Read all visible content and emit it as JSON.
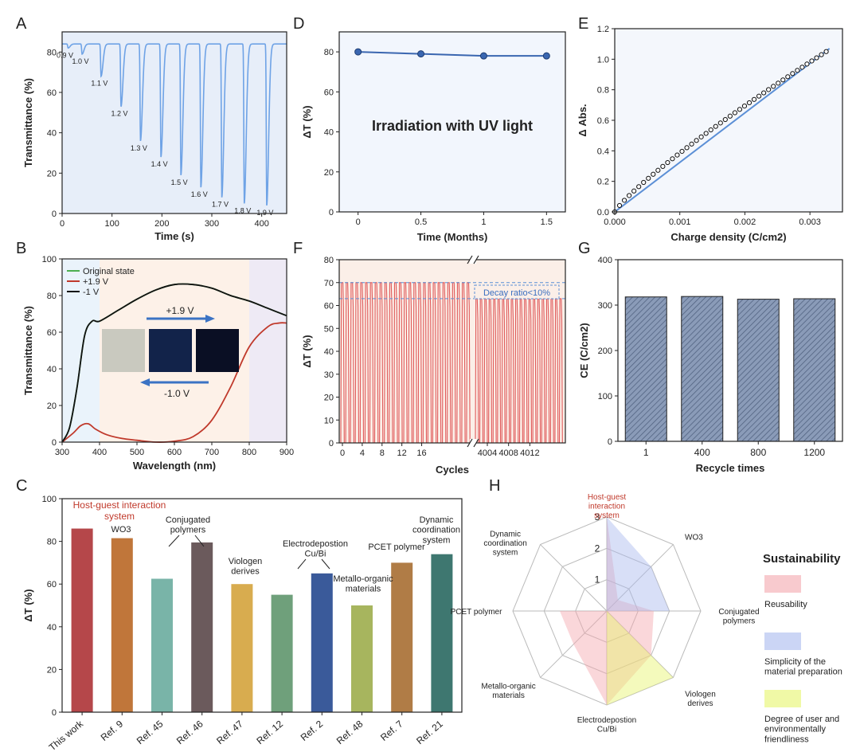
{
  "panel_letters": [
    "A",
    "B",
    "C",
    "D",
    "E",
    "F",
    "G",
    "H"
  ],
  "chart_data": [
    {
      "id": "A",
      "type": "line",
      "xlabel": "Time (s)",
      "ylabel": "Transmittance (%)",
      "xlim": [
        0,
        450
      ],
      "ylim": [
        0,
        90
      ],
      "xticks": [
        0,
        100,
        200,
        300,
        400
      ],
      "yticks": [
        0,
        20,
        40,
        60,
        80
      ],
      "baseline": 84,
      "dips": [
        {
          "t": 12,
          "min": 82,
          "label": "0.9 V"
        },
        {
          "t": 40,
          "min": 79,
          "label": "1.0 V"
        },
        {
          "t": 78,
          "min": 68,
          "label": "1.1 V"
        },
        {
          "t": 118,
          "min": 53,
          "label": "1.2 V"
        },
        {
          "t": 157,
          "min": 36,
          "label": "1.3 V"
        },
        {
          "t": 198,
          "min": 28,
          "label": "1.4 V"
        },
        {
          "t": 238,
          "min": 19,
          "label": "1.5 V"
        },
        {
          "t": 278,
          "min": 13,
          "label": "1.6 V"
        },
        {
          "t": 320,
          "min": 8,
          "label": "1.7 V"
        },
        {
          "t": 365,
          "min": 5,
          "label": "1.8 V"
        },
        {
          "t": 410,
          "min": 4,
          "label": "1.9 V"
        }
      ]
    },
    {
      "id": "B",
      "type": "line",
      "xlabel": "Wavelength (nm)",
      "ylabel": "Transmittance (%)",
      "xlim": [
        300,
        900
      ],
      "ylim": [
        0,
        100
      ],
      "xticks": [
        300,
        400,
        500,
        600,
        700,
        800,
        900
      ],
      "yticks": [
        0,
        20,
        40,
        60,
        80,
        100
      ],
      "legend": [
        "Original state",
        "+1.9 V",
        "-1 V"
      ],
      "arrow_labels": [
        "+1.9 V",
        "-1.0 V"
      ],
      "series": [
        {
          "name": "Original state",
          "color": "#4caf50",
          "x": [
            300,
            320,
            340,
            360,
            380,
            400,
            450,
            500,
            550,
            600,
            650,
            700,
            750,
            800,
            850,
            900
          ],
          "y": [
            0,
            8,
            30,
            58,
            66,
            66,
            72,
            78,
            83,
            86,
            86,
            84,
            80,
            77,
            73,
            69
          ]
        },
        {
          "name": "+1.9 V",
          "color": "#c0392b",
          "x": [
            300,
            330,
            350,
            370,
            390,
            420,
            460,
            500,
            550,
            600,
            650,
            700,
            750,
            800,
            850,
            880,
            900
          ],
          "y": [
            0,
            5,
            9,
            10,
            7,
            4,
            2,
            1,
            0,
            0.5,
            3,
            12,
            30,
            52,
            63,
            65,
            65
          ]
        },
        {
          "name": "-1 V",
          "color": "#111111",
          "x": [
            300,
            320,
            340,
            360,
            380,
            400,
            450,
            500,
            550,
            600,
            650,
            700,
            750,
            800,
            850,
            900
          ],
          "y": [
            0,
            8,
            30,
            58,
            66,
            66,
            72,
            78,
            83,
            86,
            86,
            84,
            80,
            77,
            73,
            69
          ]
        }
      ]
    },
    {
      "id": "C",
      "type": "bar",
      "ylabel": "ΔT (%)",
      "ylim": [
        0,
        100
      ],
      "yticks": [
        0,
        20,
        40,
        60,
        80,
        100
      ],
      "categories": [
        "This work",
        "Ref. 9",
        "Ref. 45",
        "Ref. 46",
        "Ref. 47",
        "Ref. 12",
        "Ref. 2",
        "Ref. 48",
        "Ref. 7",
        "Ref. 21"
      ],
      "values": [
        86,
        81.5,
        62.5,
        79.5,
        60,
        55,
        65,
        50,
        70,
        74
      ],
      "colors": [
        "#b5474a",
        "#c0763a",
        "#79b4a8",
        "#6b5a5c",
        "#d8ac4f",
        "#6fa07b",
        "#3a5a9a",
        "#a7b55e",
        "#b07c46",
        "#3e7770"
      ],
      "annotations": [
        "Host-guest interaction system",
        "WO3",
        "Conjugated polymers",
        "Viologen derives",
        "Electrodepostion Cu/Bi",
        "Metallo-organic materials",
        "PCET polymer",
        "Dynamic coordination system"
      ]
    },
    {
      "id": "D",
      "type": "line",
      "xlabel": "Time (Months)",
      "ylabel": "ΔT (%)",
      "xlim": [
        -0.15,
        1.65
      ],
      "ylim": [
        0,
        90
      ],
      "xticks": [
        0,
        0.5,
        1,
        1.5
      ],
      "xtick_labels": [
        "0",
        "0.5",
        "1",
        "1.5"
      ],
      "yticks": [
        0,
        20,
        40,
        60,
        80
      ],
      "x": [
        0,
        0.5,
        1,
        1.5
      ],
      "y": [
        80,
        79,
        78,
        78
      ],
      "annotation": "Irradiation with UV light"
    },
    {
      "id": "E",
      "type": "scatter",
      "xlabel": "Charge density (C/cm2)",
      "ylabel": "Δ Abs.",
      "xlim": [
        0,
        0.0035
      ],
      "ylim": [
        0,
        1.2
      ],
      "xticks": [
        0,
        0.001,
        0.002,
        0.003
      ],
      "xtick_labels": [
        "0.000",
        "0.001",
        "0.002",
        "0.003"
      ],
      "yticks": [
        0,
        0.2,
        0.4,
        0.6,
        0.8,
        1.0,
        1.2
      ],
      "ytick_labels": [
        "0.0",
        "0.2",
        "0.4",
        "0.6",
        "0.8",
        "1.0",
        "1.2"
      ],
      "fit": {
        "x": [
          0,
          0.0033
        ],
        "y": [
          0,
          1.07
        ]
      },
      "curve_exponent": 0.85,
      "x_max": 0.00325,
      "y_max": 1.05,
      "n_points": 45
    },
    {
      "id": "F",
      "type": "line",
      "xlabel": "Cycles",
      "ylabel": "ΔT (%)",
      "ylim": [
        0,
        80
      ],
      "yticks": [
        0,
        10,
        20,
        30,
        40,
        50,
        60,
        70,
        80
      ],
      "xtick_labels_left": [
        "0",
        "4",
        "8",
        "12",
        "16"
      ],
      "xtick_labels_right": [
        "4004",
        "4008",
        "4012"
      ],
      "cycles_left": 27,
      "cycles_right": 20,
      "max_left": 70,
      "max_right": 63,
      "annotation": "Decay ratio<10%"
    },
    {
      "id": "G",
      "type": "bar",
      "xlabel": "Recycle times",
      "ylabel": "CE (C/cm2)",
      "ylim": [
        0,
        400
      ],
      "yticks": [
        0,
        100,
        200,
        300,
        400
      ],
      "categories": [
        "1",
        "400",
        "800",
        "1200"
      ],
      "values": [
        318,
        319,
        313,
        314
      ]
    },
    {
      "id": "H",
      "type": "radar",
      "rmax": 3,
      "ring_labels": [
        "1",
        "2",
        "3"
      ],
      "axes": [
        "Host-guest interaction system",
        "WO3",
        "Conjugated polymers",
        "Viologen derives",
        "Electrodepostion Cu/Bi",
        "Metallo-organic materials",
        "PCET polymer",
        "Dynamic coordination system"
      ],
      "legend_title": "Sustainability",
      "series": [
        {
          "name": "Reusability",
          "color": "#f4a6ad",
          "values": [
            3,
            0.5,
            1.5,
            2,
            3,
            1.5,
            1.5,
            0
          ]
        },
        {
          "name": "Simplicity of the material preparation",
          "color": "#a9b9ee",
          "values": [
            3,
            2,
            2,
            0,
            3,
            0,
            0,
            0
          ]
        },
        {
          "name": "Degree of user and environmentally friendliness",
          "color": "#e6f56a",
          "values": [
            3,
            0,
            0,
            3,
            3,
            0,
            0,
            0
          ]
        }
      ]
    }
  ]
}
